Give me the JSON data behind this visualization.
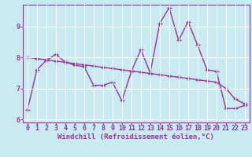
{
  "x": [
    0,
    1,
    2,
    3,
    4,
    5,
    6,
    7,
    8,
    9,
    10,
    11,
    12,
    13,
    14,
    15,
    16,
    17,
    18,
    19,
    20,
    21,
    22,
    23
  ],
  "line1": [
    6.3,
    7.6,
    7.9,
    8.1,
    7.85,
    7.75,
    7.7,
    7.1,
    7.1,
    7.2,
    6.6,
    7.55,
    8.25,
    7.5,
    9.1,
    9.6,
    8.55,
    9.15,
    8.4,
    7.6,
    7.55,
    6.35,
    6.35,
    6.45
  ],
  "trend": [
    8.0,
    7.96,
    7.92,
    7.88,
    7.84,
    7.8,
    7.76,
    7.72,
    7.68,
    7.64,
    7.6,
    7.56,
    7.52,
    7.48,
    7.44,
    7.4,
    7.36,
    7.32,
    7.28,
    7.24,
    7.2,
    7.0,
    6.65,
    6.5
  ],
  "line_color": "#993399",
  "bg_color": "#c8eaf0",
  "grid_color": "#ffffff",
  "xlabel": "Windchill (Refroidissement éolien,°C)",
  "ylim": [
    5.9,
    9.7
  ],
  "xlim": [
    -0.5,
    23.5
  ],
  "yticks": [
    6,
    7,
    8,
    9
  ],
  "xticks": [
    0,
    1,
    2,
    3,
    4,
    5,
    6,
    7,
    8,
    9,
    10,
    11,
    12,
    13,
    14,
    15,
    16,
    17,
    18,
    19,
    20,
    21,
    22,
    23
  ],
  "marker": "+",
  "markersize": 4,
  "linewidth": 1.0,
  "xlabel_fontsize": 6.5,
  "tick_fontsize": 6.0
}
